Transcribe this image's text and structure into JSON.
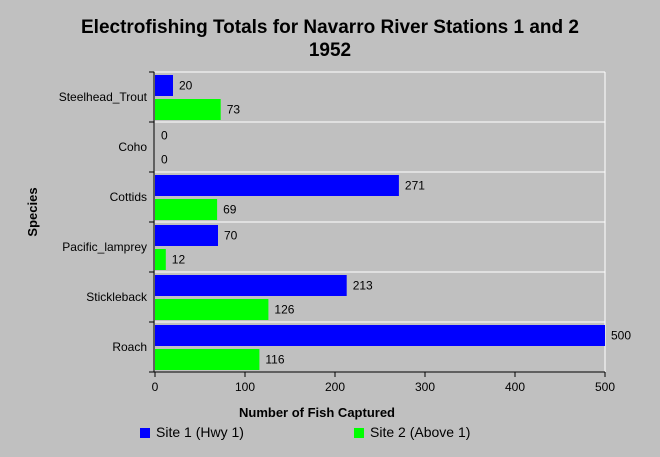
{
  "chart_data": {
    "type": "bar",
    "orientation": "horizontal",
    "title": "Electrofishing Totals for Navarro River Stations 1 and 2",
    "subtitle": "1952",
    "xlabel": "Number of Fish Captured",
    "ylabel": "Species",
    "categories": [
      "Steelhead_Trout",
      "Coho",
      "Cottids",
      "Pacific_lamprey",
      "Stickleback",
      "Roach"
    ],
    "series": [
      {
        "name": "Site 1 (Hwy 1)",
        "color": "#0000ff",
        "values": [
          20,
          0,
          271,
          70,
          213,
          500
        ]
      },
      {
        "name": "Site 2 (Above 1)",
        "color": "#00ff00",
        "values": [
          73,
          0,
          69,
          12,
          126,
          116
        ]
      }
    ],
    "xlim": [
      0,
      500
    ],
    "xticks": [
      0,
      100,
      200,
      300,
      400,
      500
    ],
    "grid": false,
    "legend_position": "bottom",
    "plot_background": "#c0c0c0"
  }
}
